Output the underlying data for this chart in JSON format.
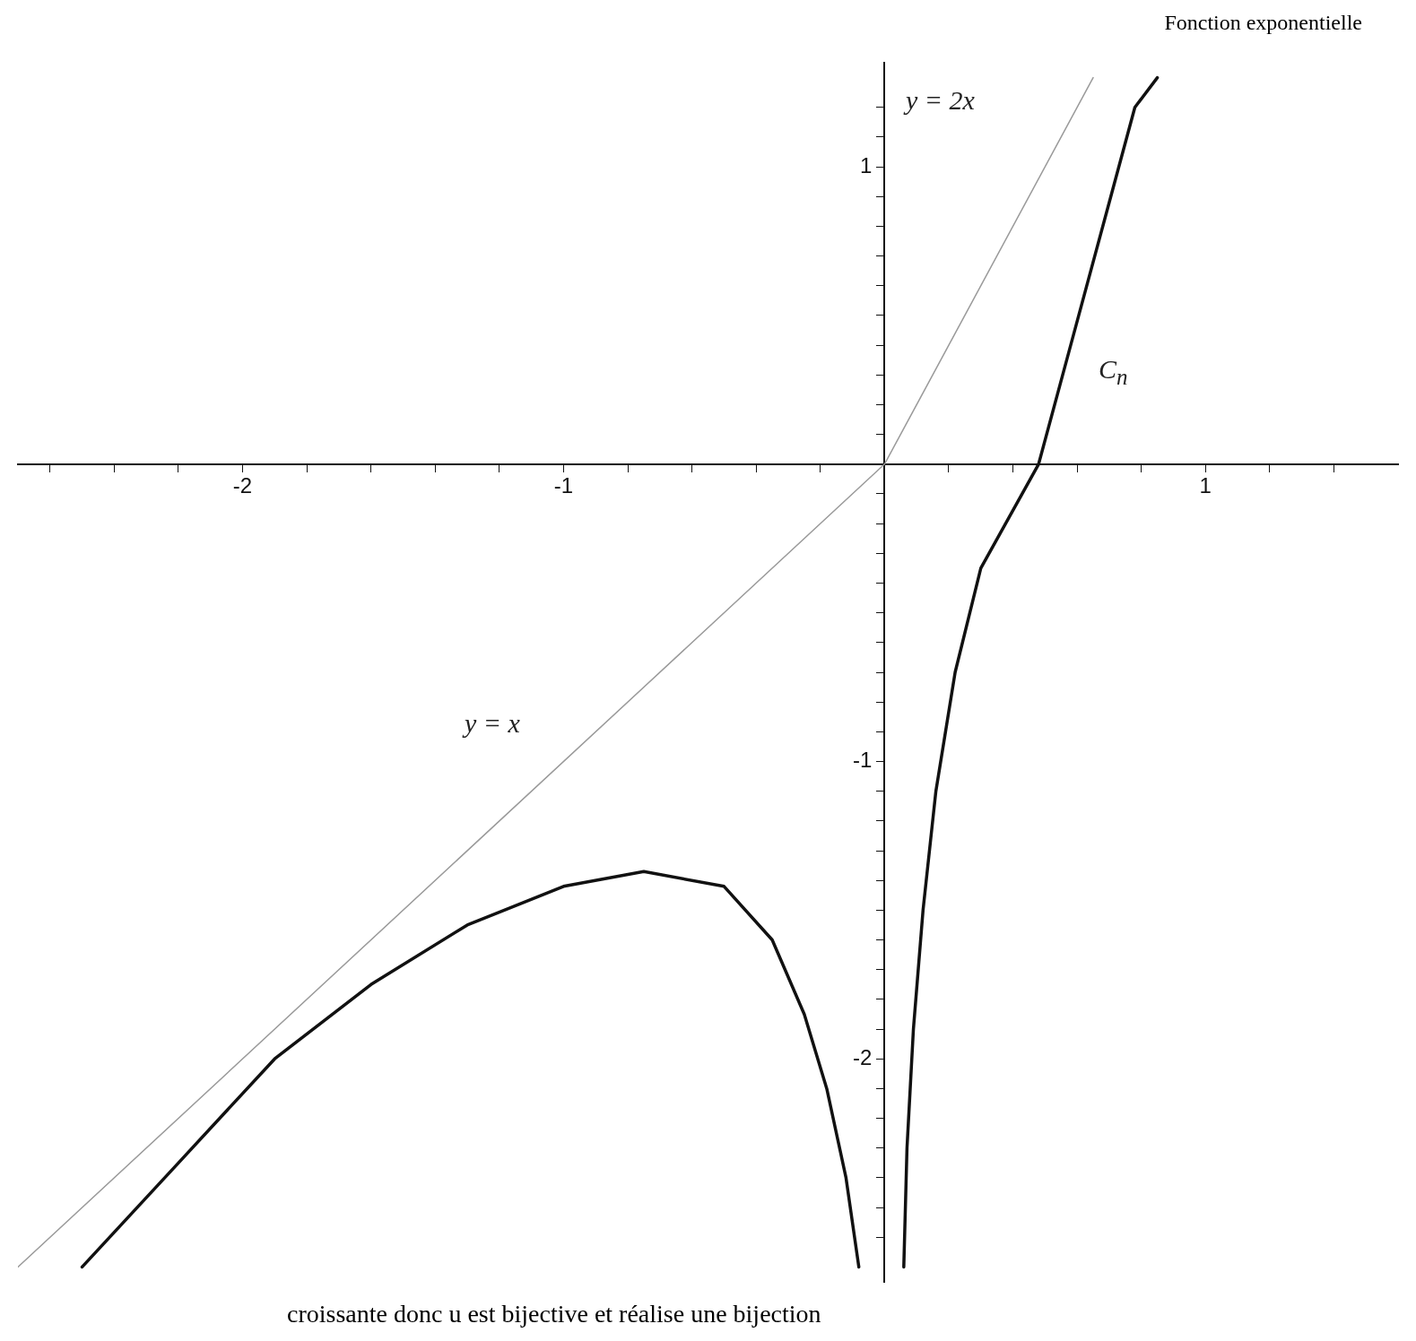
{
  "chart_data": {
    "type": "line",
    "annotations": [
      "Fonction exponentielle",
      "y = 2x",
      "y = x",
      "C$_{n}$",
      "croissante donc u est bijective et réalise une bijection"
    ],
    "xlim": [
      -2.7,
      1.6
    ],
    "ylim": [
      -2.75,
      1.35
    ],
    "grid": false,
    "legend": false,
    "marker": "none",
    "line_style": "solid",
    "xticks": [
      {
        "value": -2.6,
        "label": null
      },
      {
        "value": -2.4,
        "label": null
      },
      {
        "value": -2.2,
        "label": null
      },
      -2,
      {
        "value": -1.8,
        "label": null
      },
      {
        "value": -1.6,
        "label": null
      },
      {
        "value": -1.4,
        "label": null
      },
      {
        "value": -1.2,
        "label": null
      },
      -1,
      {
        "value": -0.8,
        "label": null
      },
      {
        "value": -0.6,
        "label": null
      },
      {
        "value": -0.4,
        "label": null
      },
      {
        "value": -0.2,
        "label": null
      },
      {
        "value": 0.2,
        "label": null
      },
      {
        "value": 0.4,
        "label": null
      },
      {
        "value": 0.6,
        "label": null
      },
      {
        "value": 0.8,
        "label": null
      },
      1,
      {
        "value": 1.2,
        "label": null
      },
      {
        "value": 1.4,
        "label": null
      }
    ],
    "yticks": [
      {
        "value": -2.6,
        "label": null
      },
      {
        "value": -2.5,
        "label": null
      },
      {
        "value": -2.4,
        "label": null
      },
      {
        "value": -2.3,
        "label": null
      },
      {
        "value": -2.2,
        "label": null
      },
      {
        "value": -2.1,
        "label": null
      },
      -2,
      {
        "value": -1.9,
        "label": null
      },
      {
        "value": -1.8,
        "label": null
      },
      {
        "value": -1.7,
        "label": null
      },
      {
        "value": -1.6,
        "label": null
      },
      {
        "value": -1.5,
        "label": null
      },
      {
        "value": -1.4,
        "label": null
      },
      {
        "value": -1.3,
        "label": null
      },
      {
        "value": -1.2,
        "label": null
      },
      {
        "value": -1.1,
        "label": null
      },
      -1,
      {
        "value": -0.9,
        "label": null
      },
      {
        "value": -0.8,
        "label": null
      },
      {
        "value": -0.7,
        "label": null
      },
      {
        "value": -0.6,
        "label": null
      },
      {
        "value": -0.5,
        "label": null
      },
      {
        "value": -0.4,
        "label": null
      },
      {
        "value": -0.3,
        "label": null
      },
      {
        "value": -0.2,
        "label": null
      },
      {
        "value": -0.1,
        "label": null
      },
      {
        "value": 0.1,
        "label": null
      },
      {
        "value": 0.2,
        "label": null
      },
      {
        "value": 0.3,
        "label": null
      },
      {
        "value": 0.4,
        "label": null
      },
      {
        "value": 0.5,
        "label": null
      },
      {
        "value": 0.6,
        "label": null
      },
      {
        "value": 0.7,
        "label": null
      },
      {
        "value": 0.8,
        "label": null
      },
      {
        "value": 0.9,
        "label": null
      },
      1,
      {
        "value": 1.1,
        "label": null
      },
      {
        "value": 1.2,
        "label": null
      }
    ],
    "series": [
      {
        "color": "#9a9a9a",
        "x": [
          -2.7,
          0,
          0.65
        ],
        "values": [
          -2.7,
          0,
          1.3
        ]
      },
      {
        "color": "#111111",
        "x": [
          -2.5,
          -2.2,
          -1.9,
          -1.6,
          -1.3,
          -1.0,
          -0.75,
          -0.5,
          -0.35,
          -0.25,
          -0.18,
          -0.12,
          -0.08,
          null,
          0.06,
          0.07,
          0.09,
          0.12,
          0.16,
          0.22,
          0.3,
          0.48,
          0.58,
          0.68,
          0.78,
          0.85
        ],
        "values": [
          -2.7,
          -2.35,
          -2.0,
          -1.75,
          -1.55,
          -1.42,
          -1.37,
          -1.42,
          -1.6,
          -1.85,
          -2.1,
          -2.4,
          -2.7,
          null,
          -2.7,
          -2.3,
          -1.9,
          -1.5,
          -1.1,
          -0.7,
          -0.35,
          0,
          0.4,
          0.8,
          1.2,
          1.3
        ]
      }
    ]
  }
}
